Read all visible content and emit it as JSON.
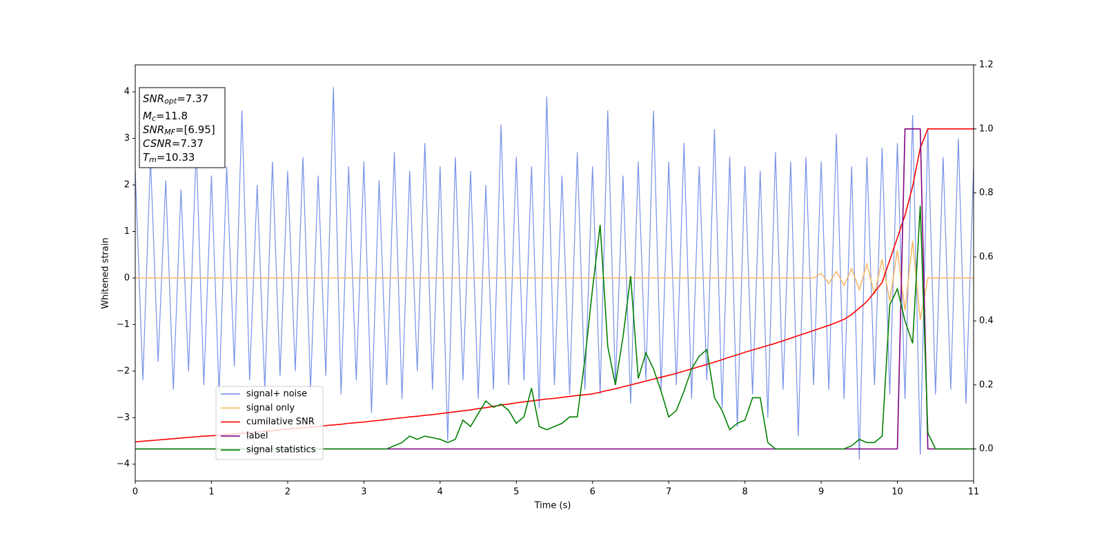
{
  "chart_data": {
    "type": "line",
    "x_label": "Time (s)",
    "y_label": "Whitened strain",
    "x": [
      0,
      0.1,
      0.2,
      0.3,
      0.4,
      0.5,
      0.6,
      0.7,
      0.8,
      0.9,
      1,
      1.1,
      1.2,
      1.3,
      1.4,
      1.5,
      1.6,
      1.7,
      1.8,
      1.9,
      2,
      2.1,
      2.2,
      2.3,
      2.4,
      2.5,
      2.6,
      2.7,
      2.8,
      2.9,
      3,
      3.1,
      3.2,
      3.3,
      3.4,
      3.5,
      3.6,
      3.7,
      3.8,
      3.9,
      4,
      4.1,
      4.2,
      4.3,
      4.4,
      4.5,
      4.6,
      4.7,
      4.8,
      4.9,
      5,
      5.1,
      5.2,
      5.3,
      5.4,
      5.5,
      5.6,
      5.7,
      5.8,
      5.9,
      6,
      6.1,
      6.2,
      6.3,
      6.4,
      6.5,
      6.6,
      6.7,
      6.8,
      6.9,
      7,
      7.1,
      7.2,
      7.3,
      7.4,
      7.5,
      7.6,
      7.7,
      7.8,
      7.9,
      8,
      8.1,
      8.2,
      8.3,
      8.4,
      8.5,
      8.6,
      8.7,
      8.8,
      8.9,
      9,
      9.1,
      9.2,
      9.3,
      9.4,
      9.5,
      9.6,
      9.7,
      9.8,
      9.9,
      10,
      10.1,
      10.2,
      10.3,
      10.4,
      10.5,
      10.6,
      10.7,
      10.8,
      10.9,
      11
    ],
    "series": [
      {
        "name": "signal+ noise",
        "color": "#6f8ae6",
        "values": [
          2.3,
          -2.2,
          2.6,
          -1.8,
          2.1,
          -2.4,
          1.9,
          -2.0,
          2.8,
          -2.3,
          2.2,
          -2.5,
          2.4,
          -1.9,
          3.6,
          -2.2,
          2.0,
          -2.4,
          2.5,
          -2.1,
          2.3,
          -2.0,
          2.6,
          -2.4,
          2.2,
          -2.1,
          4.1,
          -2.5,
          2.4,
          -2.2,
          2.5,
          -2.9,
          2.1,
          -2.3,
          2.7,
          -2.6,
          2.3,
          -2.0,
          2.9,
          -2.4,
          2.4,
          -3.5,
          2.6,
          -2.2,
          2.3,
          -2.6,
          2.0,
          -2.4,
          3.3,
          -2.3,
          2.6,
          -2.2,
          2.4,
          -2.8,
          3.9,
          -2.3,
          2.2,
          -2.5,
          2.7,
          -2.4,
          2.4,
          -2.5,
          3.6,
          -2.3,
          2.2,
          -2.7,
          2.5,
          -2.2,
          3.6,
          -2.4,
          2.5,
          -2.3,
          2.9,
          -2.6,
          2.4,
          -2.2,
          3.2,
          -2.8,
          2.6,
          -3.2,
          2.4,
          -2.5,
          2.3,
          -3.0,
          2.7,
          -2.4,
          2.5,
          -3.4,
          2.6,
          -2.3,
          2.5,
          -2.4,
          3.1,
          -2.6,
          2.4,
          -3.9,
          2.6,
          -2.3,
          2.8,
          -2.5,
          2.9,
          -2.6,
          3.5,
          -3.8,
          3.2,
          -2.5,
          2.6,
          -2.4,
          3.0,
          -2.7,
          2.4
        ]
      },
      {
        "name": "signal only",
        "color": "#f5b968",
        "values": [
          0,
          0,
          0,
          0,
          0,
          0,
          0,
          0,
          0,
          0,
          0,
          0,
          0,
          0,
          0,
          0,
          0,
          0,
          0,
          0,
          0,
          0,
          0,
          0,
          0,
          0,
          0,
          0,
          0,
          0,
          0,
          0,
          0,
          0,
          0,
          0,
          0,
          0,
          0,
          0,
          0,
          0,
          0,
          0,
          0,
          0,
          0,
          0,
          0,
          0,
          0,
          0,
          0,
          0,
          0,
          0,
          0,
          0,
          0,
          0,
          0,
          0,
          0,
          0,
          0,
          0,
          0,
          0,
          0,
          0,
          0,
          0,
          0,
          0,
          0,
          0,
          0,
          0,
          0,
          0,
          0,
          0,
          0,
          0,
          0,
          0,
          0,
          0,
          0,
          0,
          0.1,
          -0.12,
          0.14,
          -0.16,
          0.2,
          -0.25,
          0.3,
          -0.35,
          0.4,
          -0.5,
          0.6,
          -0.7,
          0.8,
          -0.9,
          0,
          0,
          0,
          0,
          0,
          0,
          0
        ]
      },
      {
        "name": "cumilative SNR",
        "color": "#ff0000",
        "axis": "y2",
        "values": [
          0.022,
          0.024,
          0.026,
          0.028,
          0.03,
          0.032,
          0.034,
          0.036,
          0.038,
          0.04,
          0.041,
          0.043,
          0.045,
          0.047,
          0.049,
          0.051,
          0.053,
          0.055,
          0.057,
          0.06,
          0.062,
          0.064,
          0.066,
          0.068,
          0.07,
          0.073,
          0.075,
          0.077,
          0.08,
          0.082,
          0.084,
          0.087,
          0.089,
          0.092,
          0.095,
          0.097,
          0.1,
          0.102,
          0.105,
          0.107,
          0.11,
          0.113,
          0.116,
          0.119,
          0.122,
          0.126,
          0.129,
          0.133,
          0.137,
          0.14,
          0.144,
          0.147,
          0.15,
          0.153,
          0.156,
          0.158,
          0.161,
          0.164,
          0.167,
          0.169,
          0.172,
          0.177,
          0.183,
          0.188,
          0.194,
          0.2,
          0.206,
          0.212,
          0.218,
          0.224,
          0.23,
          0.236,
          0.243,
          0.25,
          0.257,
          0.264,
          0.271,
          0.279,
          0.287,
          0.294,
          0.302,
          0.309,
          0.316,
          0.323,
          0.33,
          0.338,
          0.346,
          0.354,
          0.362,
          0.37,
          0.378,
          0.386,
          0.395,
          0.405,
          0.42,
          0.44,
          0.46,
          0.49,
          0.52,
          0.59,
          0.66,
          0.73,
          0.82,
          0.94,
          1.0,
          1.0,
          1.0,
          1.0,
          1.0,
          1.0,
          1.0
        ]
      },
      {
        "name": "label",
        "color": "#800080",
        "axis": "y2",
        "values": [
          0,
          0,
          0,
          0,
          0,
          0,
          0,
          0,
          0,
          0,
          0,
          0,
          0,
          0,
          0,
          0,
          0,
          0,
          0,
          0,
          0,
          0,
          0,
          0,
          0,
          0,
          0,
          0,
          0,
          0,
          0,
          0,
          0,
          0,
          0,
          0,
          0,
          0,
          0,
          0,
          0,
          0,
          0,
          0,
          0,
          0,
          0,
          0,
          0,
          0,
          0,
          0,
          0,
          0,
          0,
          0,
          0,
          0,
          0,
          0,
          0,
          0,
          0,
          0,
          0,
          0,
          0,
          0,
          0,
          0,
          0,
          0,
          0,
          0,
          0,
          0,
          0,
          0,
          0,
          0,
          0,
          0,
          0,
          0,
          0,
          0,
          0,
          0,
          0,
          0,
          0,
          0,
          0,
          0,
          0,
          0,
          0,
          0,
          0,
          0,
          0,
          1,
          1,
          1,
          0,
          0,
          0,
          0,
          0,
          0,
          0
        ]
      },
      {
        "name": "signal statistics",
        "color": "#008000",
        "axis": "y2",
        "values": [
          0,
          0,
          0,
          0,
          0,
          0,
          0,
          0,
          0,
          0,
          0,
          0,
          0,
          0,
          0,
          0,
          0,
          0,
          0,
          0,
          0,
          0,
          0,
          0,
          0,
          0,
          0,
          0,
          0,
          0,
          0,
          0,
          0,
          0,
          0.01,
          0.02,
          0.04,
          0.03,
          0.04,
          0.035,
          0.03,
          0.02,
          0.03,
          0.09,
          0.07,
          0.11,
          0.15,
          0.13,
          0.14,
          0.12,
          0.08,
          0.1,
          0.19,
          0.07,
          0.06,
          0.07,
          0.08,
          0.1,
          0.1,
          0.28,
          0.5,
          0.7,
          0.32,
          0.2,
          0.35,
          0.54,
          0.22,
          0.3,
          0.25,
          0.18,
          0.1,
          0.12,
          0.18,
          0.25,
          0.29,
          0.31,
          0.16,
          0.12,
          0.06,
          0.08,
          0.09,
          0.16,
          0.16,
          0.02,
          0,
          0,
          0,
          0,
          0,
          0,
          0,
          0,
          0,
          0,
          0.01,
          0.03,
          0.02,
          0.02,
          0.04,
          0.45,
          0.5,
          0.4,
          0.33,
          0.76,
          0.05,
          0,
          0,
          0,
          0,
          0,
          0
        ]
      }
    ],
    "xlim": [
      0,
      11
    ],
    "xticks": [
      0,
      1,
      2,
      3,
      4,
      5,
      6,
      7,
      8,
      9,
      10,
      11
    ],
    "ylim": [
      -4.36,
      4.58
    ],
    "yticks": [
      {
        "value": -4,
        "label": "−4"
      },
      {
        "value": -3,
        "label": "−3"
      },
      {
        "value": -2,
        "label": "−2"
      },
      {
        "value": -1,
        "label": "−1"
      },
      0,
      1,
      2,
      3,
      4
    ],
    "y2lim": [
      -0.1,
      1.2
    ],
    "y2ticks": [
      {
        "value": 0,
        "label": "0.0"
      },
      0.2,
      0.4,
      0.6,
      0.8,
      {
        "value": 1,
        "label": "1.0"
      },
      1.2
    ],
    "legend_loc": "lower left",
    "annotations": [
      {
        "text": "SNR",
        "sub": "opt",
        "value": "=7.37"
      },
      {
        "text": "M",
        "sub": "c",
        "value": "=11.8"
      },
      {
        "text": "SNR",
        "sub": "MF",
        "value": "=[6.95]"
      },
      {
        "text": "CSNR",
        "value": "=7.37"
      },
      {
        "text": "T",
        "sub": "m",
        "value": "=10.33"
      }
    ]
  }
}
